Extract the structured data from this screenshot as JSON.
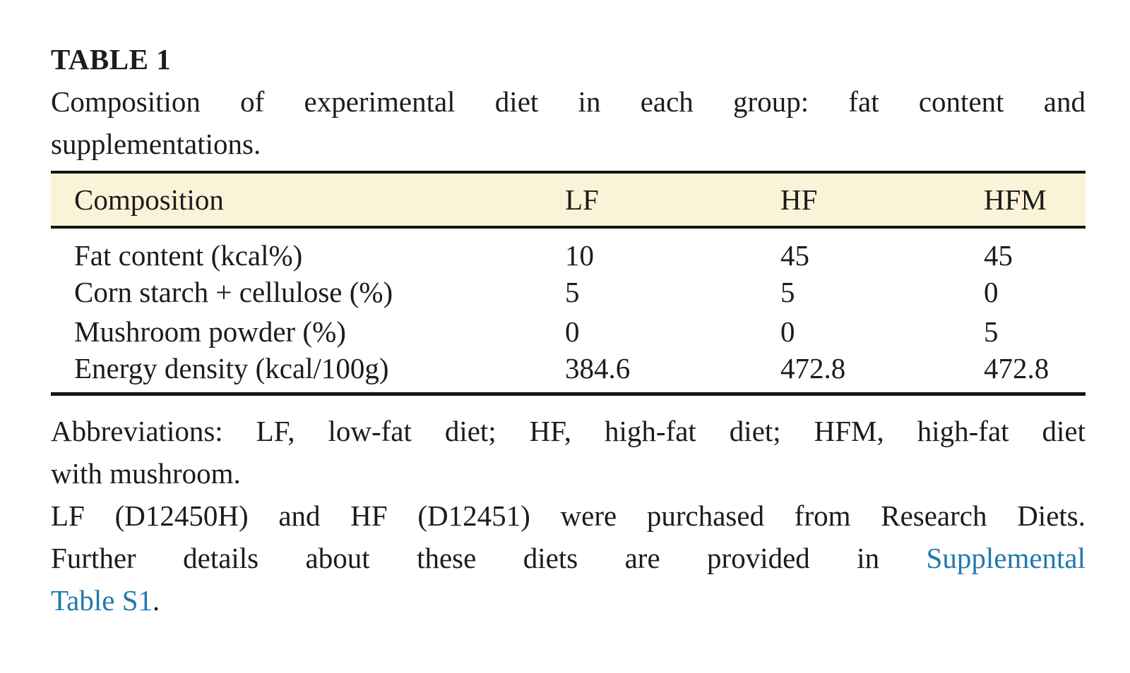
{
  "title": "TABLE 1",
  "caption": {
    "line1": "Composition of experimental diet in each group: fat content and",
    "line2": "supplementations."
  },
  "chart_data": {
    "type": "table",
    "title": "Composition of experimental diet in each group: fat content and supplementations.",
    "columns": [
      "Composition",
      "LF",
      "HF",
      "HFM"
    ],
    "rows": [
      {
        "label": "Fat content (kcal%)",
        "values": [
          "10",
          "45",
          "45"
        ]
      },
      {
        "label": "Corn starch + cellulose (%)",
        "values": [
          "5",
          "5",
          "0"
        ]
      },
      {
        "label": "Mushroom powder (%)",
        "values": [
          "0",
          "0",
          "5"
        ]
      },
      {
        "label": "Energy density (kcal/100g)",
        "values": [
          "384.6",
          "472.8",
          "472.8"
        ]
      }
    ]
  },
  "table": {
    "columns": [
      "Composition",
      "LF",
      "HF",
      "HFM"
    ],
    "rows": [
      {
        "label": "Fat content (kcal%)",
        "values": [
          "10",
          "45",
          "45"
        ]
      },
      {
        "label": "Corn starch + cellulose (%)",
        "values": [
          "5",
          "5",
          "0"
        ]
      },
      {
        "label": "Mushroom powder (%)",
        "values": [
          "0",
          "0",
          "5"
        ]
      },
      {
        "label": "Energy density (kcal/100g)",
        "values": [
          "384.6",
          "472.8",
          "472.8"
        ]
      }
    ]
  },
  "footnotes": {
    "abbreviations_line1": "Abbreviations: LF, low-fat diet; HF, high-fat diet; HFM, high-fat diet",
    "abbreviations_line2": "with mushroom.",
    "purchase_line": "LF (D12450H) and HF (D12451) were purchased from Research Diets.",
    "details_prefix": "Further details about these diets are provided in",
    "link_part1": "Supplemental",
    "link_part2": "Table S1",
    "details_suffix": "."
  },
  "colors": {
    "text": "#1c1c1c",
    "header_background": "#fbf3d8",
    "rule": "#141414",
    "link": "#2079ad"
  }
}
